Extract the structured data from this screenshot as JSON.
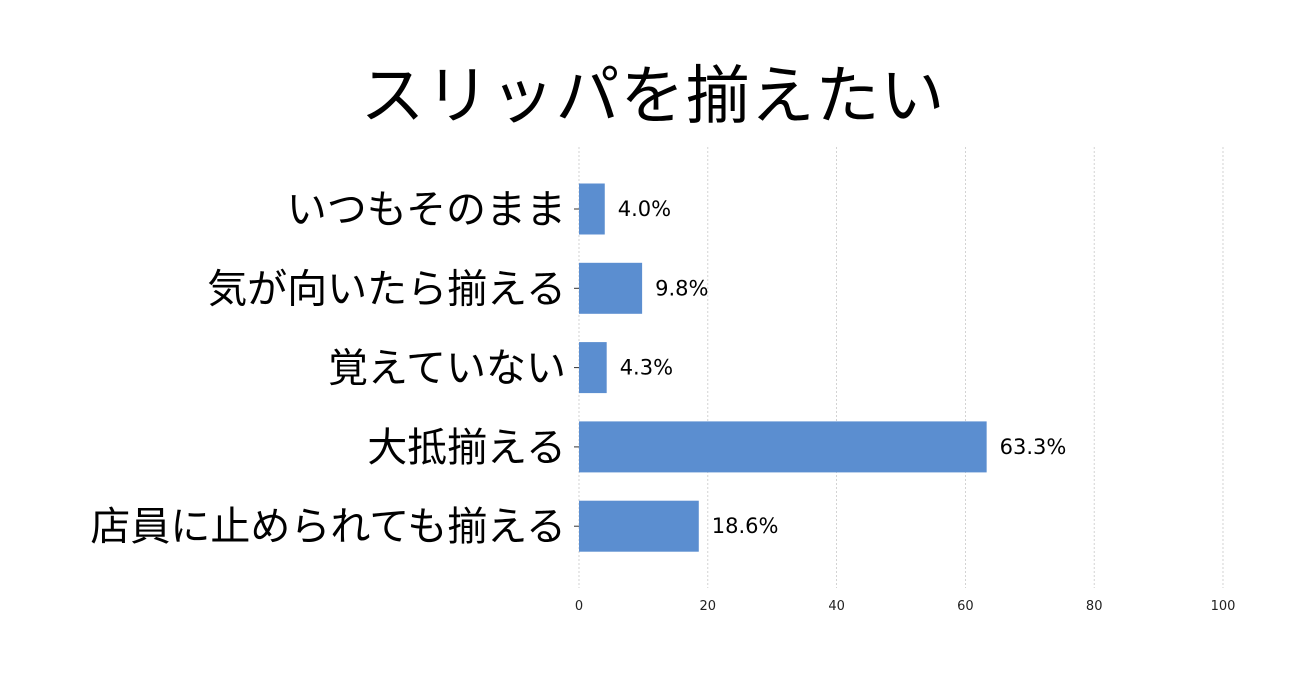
{
  "chart_data": {
    "type": "bar",
    "orientation": "horizontal",
    "title": "スリッパを揃えたい",
    "categories": [
      "いつもそのまま",
      "気が向いたら揃える",
      "覚えていない",
      "大抵揃える",
      "店員に止められても揃える"
    ],
    "values": [
      4.0,
      9.8,
      4.3,
      63.3,
      18.6
    ],
    "value_labels": [
      "4.0%",
      "9.8%",
      "4.3%",
      "63.3%",
      "18.6%"
    ],
    "xlim": [
      0,
      100
    ],
    "xticks": [
      0,
      20,
      40,
      60,
      80,
      100
    ],
    "xlabel": "",
    "ylabel": "",
    "grid": "vertical dashed",
    "bar_color": "#5b8ed0"
  }
}
